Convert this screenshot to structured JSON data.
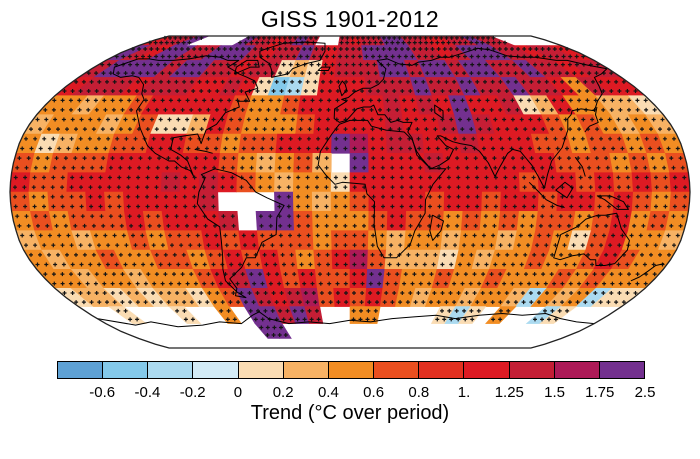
{
  "title": "GISS 1901-2012",
  "colorbar": {
    "caption": "Trend (°C over period)",
    "tick_labels": [
      "-0.6",
      "-0.4",
      "-0.2",
      "0",
      "0.2",
      "0.4",
      "0.6",
      "0.8",
      "1.",
      "1.25",
      "1.5",
      "1.75",
      "2.5"
    ],
    "colors": [
      "#5EA1D4",
      "#84C9EA",
      "#ABDAF0",
      "#D3EBF6",
      "#FADCB3",
      "#F7B264",
      "#F28D23",
      "#EA4F1F",
      "#E23020",
      "#DD1A23",
      "#C41E35",
      "#AC1A57",
      "#73308F"
    ]
  },
  "chart_data": {
    "type": "heatmap",
    "title": "GISS 1901-2012",
    "subtitle": "",
    "units_label": "Trend (°C over period)",
    "projection": "robinson",
    "colorbar_tick_labels": [
      "-0.6",
      "-0.4",
      "-0.2",
      "0",
      "0.2",
      "0.4",
      "0.6",
      "0.8",
      "1.",
      "1.25",
      "1.5",
      "1.75",
      "2.5"
    ],
    "colorbar_colors": [
      "#5EA1D4",
      "#84C9EA",
      "#ABDAF0",
      "#D3EBF6",
      "#FADCB3",
      "#F7B264",
      "#F28D23",
      "#EA4F1F",
      "#E23020",
      "#DD1A23",
      "#C41E35",
      "#AC1A57",
      "#73308F"
    ],
    "palette_letters": "abcdefghijklm",
    "no_data_char": ".",
    "stipple_marker": "+",
    "grid_deg": 10,
    "rows_lat_90N_to_90S": [
      "jkkm....mkkjkmk..kjkkmmkkjjkkmkk....",
      "mkjmmkkmmmkjkkmkjkkmmmmkkjkmmmkkjkkj",
      "kmmmmkmmkkjkkefejkkkmmkmmkmmkkmkkjkk",
      "jkkkjkkkjjkjebcejjjkkkmkkmkkmkkjgkjj",
      "ggfgghjjjjjhgghjjjjjkjkjmjjkefjggffe",
      "fgggfgheefjhggghjjjjkjjkmkjjjhghgfgf",
      "gefgghhjjhhghhjjjmljkkjjkjjjhhghhghg",
      "hghhhjjjjjjhgfghf.mjjjkjjjjjjhhhghgh",
      "jhhjjjjjkjkjhgfggejjjjjjjjjhjjhjhjhj",
      "hghhjhjjjjk...mgfghjjjhjjhjjhjjhjhgh",
      "ghghhhjhjjjk.mmhggghjhhghghghhghjghg",
      "fggfgghghhjhjhhhghhgfggfggfghgehjggf",
      "gfgghgghhghjhjhghjlhfffegfgghgghjhgg",
      "ggfggfggghjkmjhjhhjmhgghgghggghghggg",
      "effefeffeghmkjklhjhjhgfggfggfcgfgcee",
      "..e...e..g.mmkmk..gg....ece.g..ce...",
      "...........mm.......................",
      "...................................."
    ]
  }
}
